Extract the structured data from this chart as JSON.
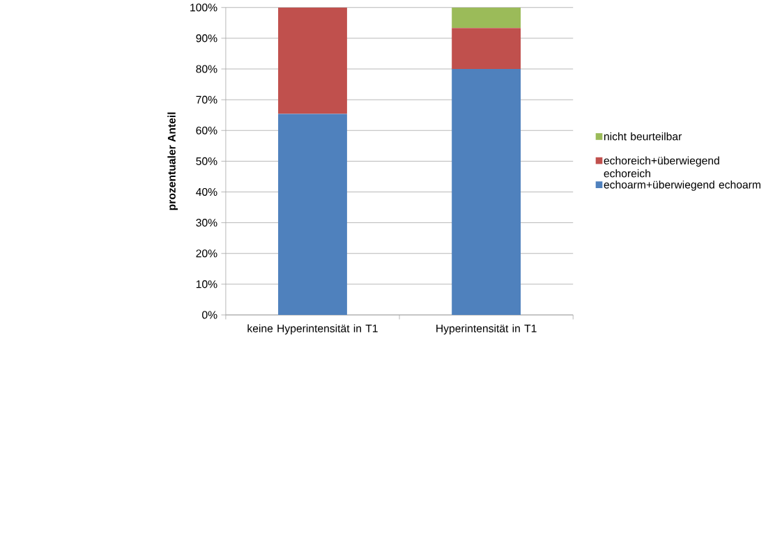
{
  "chart_data": {
    "type": "bar",
    "stacked": true,
    "ylabel": "prozentualer Anteil",
    "categories": [
      "keine Hyperintensität in T1",
      "Hyperintensität in T1"
    ],
    "series": [
      {
        "name": "echoarm+überwiegend echoarm",
        "color": "#4f81bd",
        "values": [
          65.4,
          80
        ]
      },
      {
        "name": "echoreich+überwiegend echoreich",
        "color": "#c0504d",
        "values": [
          34.6,
          13.3
        ]
      },
      {
        "name": "nicht beurteilbar",
        "color": "#9bbb59",
        "values": [
          0,
          6.7
        ]
      }
    ],
    "ylim": [
      0,
      100
    ],
    "yticks": [
      {
        "value": 0,
        "label": "0%"
      },
      {
        "value": 10,
        "label": "10%"
      },
      {
        "value": 20,
        "label": "20%"
      },
      {
        "value": 30,
        "label": "30%"
      },
      {
        "value": 40,
        "label": "40%"
      },
      {
        "value": 50,
        "label": "50%"
      },
      {
        "value": 60,
        "label": "60%"
      },
      {
        "value": 70,
        "label": "70%"
      },
      {
        "value": 80,
        "label": "80%"
      },
      {
        "value": 90,
        "label": "90%"
      },
      {
        "value": 100,
        "label": "100%"
      }
    ],
    "grid": "y",
    "legend": "right"
  }
}
